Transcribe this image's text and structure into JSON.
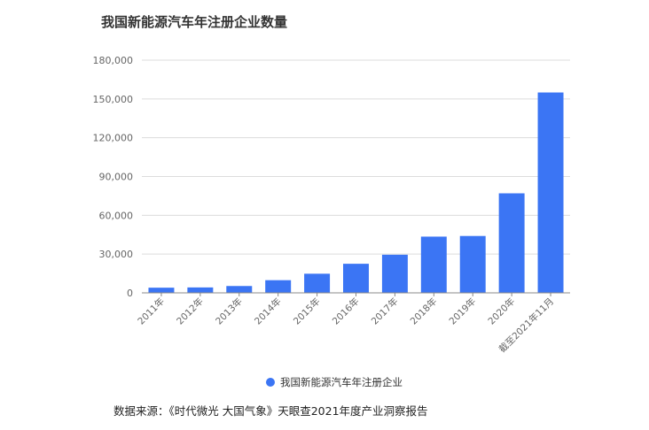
{
  "colors": {
    "bar": "#3b75f4",
    "grid": "#dcdcdc",
    "axis": "#888888",
    "text": "#666666"
  },
  "chart_data": {
    "type": "bar",
    "title": "我国新能源汽车年注册企业数量",
    "categories": [
      "2011年",
      "2012年",
      "2013年",
      "2014年",
      "2015年",
      "2016年",
      "2017年",
      "2018年",
      "2019年",
      "2020年",
      "截至2021年11月"
    ],
    "series": [
      {
        "name": "我国新能源汽车年注册企业",
        "values": [
          4000,
          4200,
          5300,
          9800,
          14800,
          22500,
          29500,
          43500,
          44000,
          77000,
          155000
        ]
      }
    ],
    "ylim": [
      0,
      180000
    ],
    "yticks": [
      "0",
      "30,000",
      "60,000",
      "90,000",
      "120,000",
      "150,000",
      "180,000"
    ],
    "ytick_values": [
      0,
      30000,
      60000,
      90000,
      120000,
      150000,
      180000
    ],
    "xlabel": "",
    "ylabel": "",
    "grid": true,
    "legend": "bottom-center"
  },
  "legend_label": "我国新能源汽车年注册企业",
  "source": "数据来源：《时代微光 大国气象》天眼查2021年度产业洞察报告"
}
